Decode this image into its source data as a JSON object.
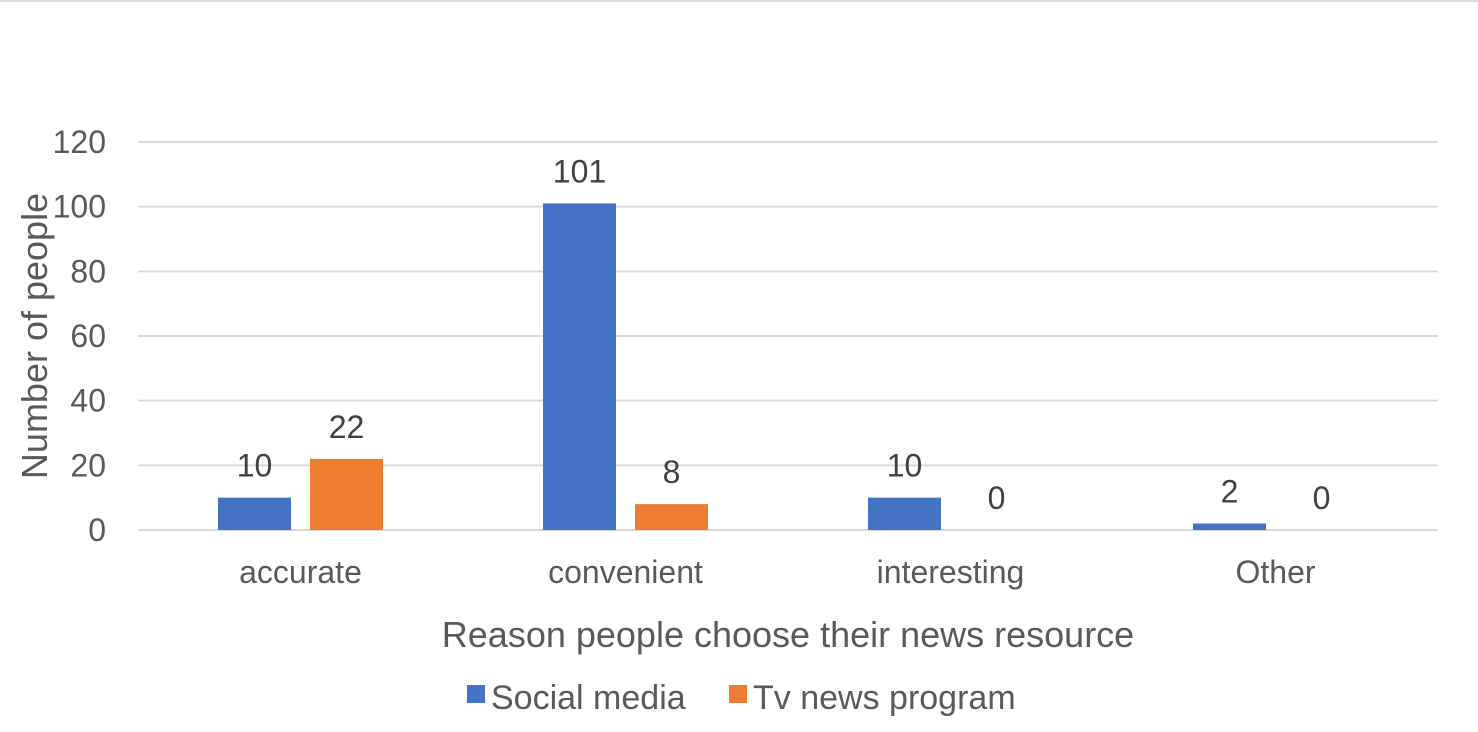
{
  "chart_data": {
    "type": "bar",
    "categories": [
      "accurate",
      "convenient",
      "interesting",
      "Other"
    ],
    "series": [
      {
        "name": "Social media",
        "values": [
          10,
          101,
          10,
          2
        ],
        "color": "#4472C4"
      },
      {
        "name": "Tv news program",
        "values": [
          22,
          8,
          0,
          0
        ],
        "color": "#ED7D31"
      }
    ],
    "xlabel": "Reason people choose their news resource",
    "ylabel": "Number of people",
    "ylim": [
      0,
      120
    ],
    "yticks": [
      0,
      20,
      40,
      60,
      80,
      100,
      120
    ],
    "grid": true,
    "legend_position": "bottom"
  }
}
